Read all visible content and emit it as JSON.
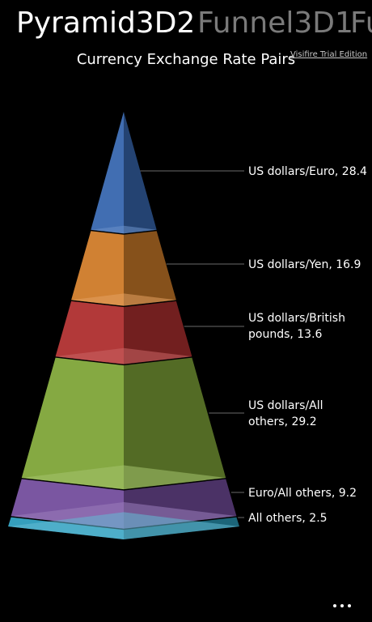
{
  "pivot": {
    "tabs": [
      {
        "label": "Pyramid3D2",
        "active": true
      },
      {
        "label": "Funnel3D1",
        "active": false
      },
      {
        "label": "Fu",
        "active": false
      }
    ]
  },
  "chart_title": "Currency Exchange Rate Pairs",
  "watermark": "Visifire Trial Edition",
  "chart_data": {
    "type": "pyramid",
    "title": "Currency Exchange Rate Pairs",
    "segments": [
      {
        "label": [
          "US dollars/Euro, 28.4"
        ],
        "value": 28.4,
        "color": "#3a6db8"
      },
      {
        "label": [
          "US dollars/Yen, 16.9"
        ],
        "value": 16.9,
        "color": "#d9822b"
      },
      {
        "label": [
          "US dollars/British",
          "pounds, 13.6"
        ],
        "value": 13.6,
        "color": "#b83232"
      },
      {
        "label": [
          "US dollars/All",
          "others, 29.2"
        ],
        "value": 29.2,
        "color": "#86ae3c"
      },
      {
        "label": [
          "Euro/All others, 9.2"
        ],
        "value": 9.2,
        "color": "#7a52a6"
      },
      {
        "label": [
          "All others, 2.5"
        ],
        "value": 2.5,
        "color": "#2ea3c4"
      }
    ]
  },
  "app_bar": {
    "icon": "ellipsis-icon"
  }
}
